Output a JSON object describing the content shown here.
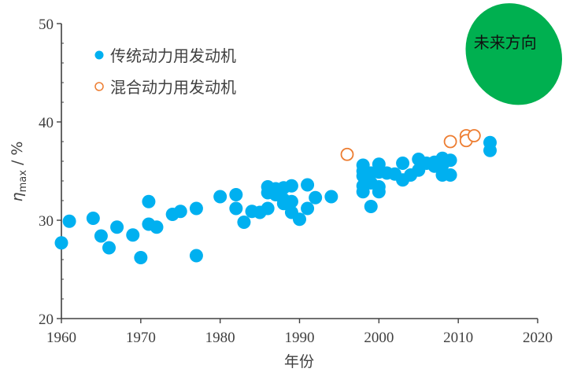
{
  "chart_data": {
    "type": "scatter",
    "title": "",
    "xlabel": "年份",
    "ylabel": {
      "symbol": "η",
      "subscript": "max",
      "unit": "%",
      "separator": " / "
    },
    "xlim": [
      1960,
      2020
    ],
    "ylim": [
      20,
      50
    ],
    "xticks": [
      1960,
      1970,
      1980,
      1990,
      2000,
      2010,
      2020
    ],
    "yticks": [
      20,
      30,
      40,
      50
    ],
    "grid": false,
    "legend_position": "top-left",
    "series": [
      {
        "name": "传统动力用发动机",
        "marker": "filled-circle",
        "color": "#00b0f0",
        "points": [
          [
            1960,
            27.7
          ],
          [
            1961,
            29.9
          ],
          [
            1964,
            30.2
          ],
          [
            1965,
            28.4
          ],
          [
            1966,
            27.2
          ],
          [
            1967,
            29.3
          ],
          [
            1969,
            28.5
          ],
          [
            1970,
            26.2
          ],
          [
            1971,
            31.9
          ],
          [
            1971,
            29.6
          ],
          [
            1972,
            29.3
          ],
          [
            1974,
            30.6
          ],
          [
            1975,
            30.9
          ],
          [
            1977,
            31.2
          ],
          [
            1977,
            26.4
          ],
          [
            1980,
            32.4
          ],
          [
            1982,
            32.6
          ],
          [
            1982,
            31.2
          ],
          [
            1983,
            29.8
          ],
          [
            1984,
            30.9
          ],
          [
            1985,
            30.8
          ],
          [
            1986,
            33.4
          ],
          [
            1986,
            32.8
          ],
          [
            1986,
            31.2
          ],
          [
            1987,
            33.2
          ],
          [
            1987,
            32.6
          ],
          [
            1988,
            33.3
          ],
          [
            1988,
            31.7
          ],
          [
            1988,
            32.1
          ],
          [
            1989,
            33.5
          ],
          [
            1989,
            31.9
          ],
          [
            1989,
            30.8
          ],
          [
            1990,
            30.1
          ],
          [
            1991,
            33.6
          ],
          [
            1991,
            31.2
          ],
          [
            1992,
            32.3
          ],
          [
            1994,
            32.4
          ],
          [
            1998,
            35.6
          ],
          [
            1998,
            35.0
          ],
          [
            1998,
            34.5
          ],
          [
            1998,
            33.5
          ],
          [
            1998,
            32.9
          ],
          [
            1999,
            34.8
          ],
          [
            1999,
            33.8
          ],
          [
            1999,
            31.4
          ],
          [
            2000,
            35.7
          ],
          [
            2000,
            34.9
          ],
          [
            2000,
            33.4
          ],
          [
            2000,
            32.9
          ],
          [
            2001,
            34.8
          ],
          [
            2002,
            34.7
          ],
          [
            2003,
            35.8
          ],
          [
            2003,
            34.1
          ],
          [
            2004,
            34.6
          ],
          [
            2005,
            36.2
          ],
          [
            2005,
            35.1
          ],
          [
            2006,
            35.8
          ],
          [
            2007,
            35.9
          ],
          [
            2007,
            35.5
          ],
          [
            2008,
            36.3
          ],
          [
            2008,
            35.6
          ],
          [
            2008,
            34.6
          ],
          [
            2009,
            36.1
          ],
          [
            2009,
            34.6
          ],
          [
            2014,
            37.9
          ],
          [
            2014,
            37.1
          ]
        ]
      },
      {
        "name": "混合动力用发动机",
        "marker": "open-circle",
        "color": "#ed7d31",
        "points": [
          [
            1996,
            36.7
          ],
          [
            2009,
            38.0
          ],
          [
            2011,
            38.6
          ],
          [
            2011,
            38.1
          ],
          [
            2012,
            38.6
          ]
        ]
      }
    ],
    "annotations": [
      {
        "text": "未来方向",
        "shape": "ellipse",
        "color": "#00b050",
        "center": [
          2017,
          46.9
        ],
        "radius_x_years": 5.9,
        "radius_y_percent": 5.3,
        "rotation_deg": -30
      }
    ]
  }
}
